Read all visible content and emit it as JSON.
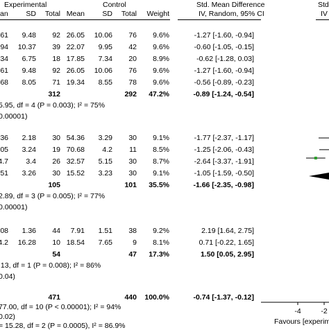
{
  "header": {
    "experimental": "Experimental",
    "control": "Control",
    "smd_title": "Std. Mean Difference",
    "smd_sub": "IV, Random, 95% CI",
    "right_title": "Std",
    "right_sub": "IV",
    "cols": {
      "mean_e": "an",
      "sd_e": "SD",
      "total_e": "Total",
      "mean_c": "Mean",
      "sd_c": "SD",
      "total_c": "Total",
      "weight": "Weight"
    }
  },
  "groups": [
    {
      "rows": [
        {
          "mean_e": "61",
          "sd_e": "9.48",
          "total_e": "92",
          "mean_c": "26.05",
          "sd_c": "10.06",
          "total_c": "76",
          "weight": "9.6%",
          "ci": "-1.27 [-1.60, -0.94]"
        },
        {
          "mean_e": "94",
          "sd_e": "10.37",
          "total_e": "39",
          "mean_c": "22.07",
          "sd_c": "9.95",
          "total_c": "42",
          "weight": "9.6%",
          "ci": "-0.60 [-1.05, -0.15]"
        },
        {
          "mean_e": "34",
          "sd_e": "6.75",
          "total_e": "18",
          "mean_c": "17.85",
          "sd_c": "7.34",
          "total_c": "20",
          "weight": "8.9%",
          "ci": "-0.62 [-1.28, 0.03]"
        },
        {
          "mean_e": "61",
          "sd_e": "9.48",
          "total_e": "92",
          "mean_c": "26.05",
          "sd_c": "10.06",
          "total_c": "76",
          "weight": "9.6%",
          "ci": "-1.27 [-1.60, -0.94]"
        },
        {
          "mean_e": "68",
          "sd_e": "8.05",
          "total_e": "71",
          "mean_c": "19.34",
          "sd_c": "8.55",
          "total_c": "78",
          "weight": "9.6%",
          "ci": "-0.56 [-0.89, -0.23]"
        }
      ],
      "subtotal": {
        "total_e": "312",
        "total_c": "292",
        "weight": "47.2%",
        "ci": "-0.89 [-1.24, -0.54]"
      },
      "het": "5.95, df = 4 (P = 0.003); I² = 75%",
      "z": "0.00001)"
    },
    {
      "rows": [
        {
          "mean_e": "36",
          "sd_e": "2.18",
          "total_e": "30",
          "mean_c": "54.36",
          "sd_c": "3.29",
          "total_c": "30",
          "weight": "9.1%",
          "ci": "-1.77 [-2.37, -1.17]"
        },
        {
          "mean_e": "05",
          "sd_e": "3.24",
          "total_e": "19",
          "mean_c": "70.68",
          "sd_c": "4.2",
          "total_c": "11",
          "weight": "8.5%",
          "ci": "-1.25 [-2.06, -0.43]"
        },
        {
          "mean_e": "4.7",
          "sd_e": "3.4",
          "total_e": "26",
          "mean_c": "32.57",
          "sd_c": "5.15",
          "total_c": "30",
          "weight": "8.7%",
          "ci": "-2.64 [-3.37, -1.91]"
        },
        {
          "mean_e": "51",
          "sd_e": "3.26",
          "total_e": "30",
          "mean_c": "15.52",
          "sd_c": "3.23",
          "total_c": "30",
          "weight": "9.1%",
          "ci": "-1.05 [-1.59, -0.50]"
        }
      ],
      "subtotal": {
        "total_e": "105",
        "total_c": "101",
        "weight": "35.5%",
        "ci": "-1.66 [-2.35, -0.98]"
      },
      "het": "2.89, df = 3 (P = 0.005); I² = 77%",
      "z": "0.00001)"
    },
    {
      "rows": [
        {
          "mean_e": "08",
          "sd_e": "1.36",
          "total_e": "44",
          "mean_c": "7.91",
          "sd_c": "1.51",
          "total_c": "38",
          "weight": "9.2%",
          "ci": "2.19 [1.64, 2.75]"
        },
        {
          "mean_e": "4.2",
          "sd_e": "16.28",
          "total_e": "10",
          "mean_c": "18.54",
          "sd_c": "7.65",
          "total_c": "9",
          "weight": "8.1%",
          "ci": "0.71 [-0.22, 1.65]"
        }
      ],
      "subtotal": {
        "total_e": "54",
        "total_c": "47",
        "weight": "17.3%",
        "ci": "1.50 [0.05, 2.95]"
      },
      "het": ".13, df = 1 (P = 0.008); I² = 86%",
      "z": "0.04)"
    }
  ],
  "overall": {
    "total_e": "471",
    "total_c": "440",
    "weight": "100.0%",
    "ci": "-0.74 [-1.37, -0.12]",
    "het": "77.00, df = 10 (P < 0.00001); I² = 94%",
    "z": "0.02)",
    "subgroup": "= 15.28, df = 2 (P = 0.0005), I² = 86.9%"
  },
  "axis": {
    "tick_labels": [
      "-4",
      "-2"
    ],
    "favours": "Favours [experim"
  },
  "chart_data": {
    "type": "forest",
    "xlim": [
      -4,
      4
    ],
    "visible_points": [
      {
        "group": 2,
        "row": 2,
        "estimate": -2.64,
        "lower": -3.37,
        "upper": -1.91
      }
    ],
    "colors": {
      "point": "#2ca02c",
      "line": "#000000"
    }
  }
}
